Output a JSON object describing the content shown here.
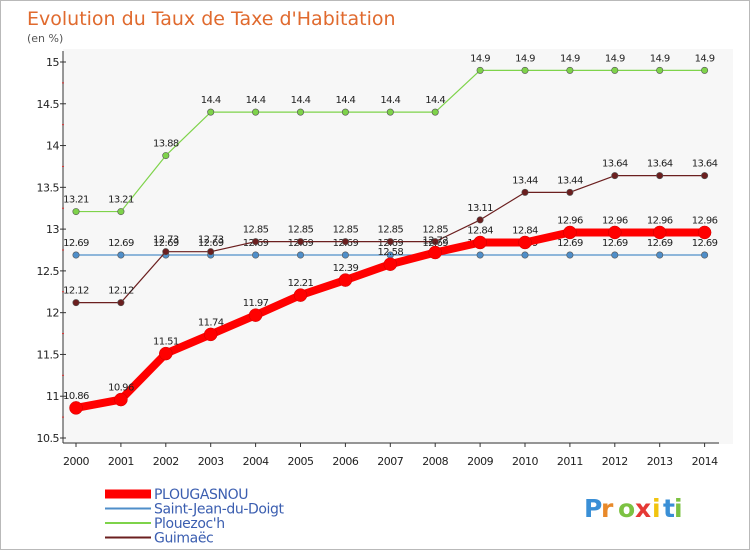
{
  "chart_data": {
    "type": "line",
    "title": "Evolution du Taux de Taxe d'Habitation",
    "subtitle": "(en %)",
    "x": [
      "2000",
      "2001",
      "2002",
      "2003",
      "2004",
      "2005",
      "2006",
      "2007",
      "2008",
      "2009",
      "2010",
      "2011",
      "2012",
      "2013",
      "2014"
    ],
    "ylim": [
      10.5,
      15
    ],
    "yticks": [
      "10.5",
      "11",
      "11.5",
      "12",
      "12.5",
      "13",
      "13.5",
      "14",
      "14.5",
      "15"
    ],
    "grid": false,
    "legend_position": "bottom-left",
    "series": [
      {
        "name": "PLOUGASNOU",
        "color": "#ff0000",
        "values": [
          10.86,
          10.96,
          11.51,
          11.74,
          11.97,
          12.21,
          12.39,
          12.58,
          12.72,
          12.84,
          12.84,
          12.96,
          12.96,
          12.96,
          12.96
        ],
        "labels": [
          "10.86",
          "10.96",
          "11.51",
          "11.74",
          "11.97",
          "12.21",
          "12.39",
          "12.58",
          "12.72",
          "12.84",
          "12.84",
          "12.96",
          "12.96",
          "12.96",
          "12.96"
        ]
      },
      {
        "name": "Saint-Jean-du-Doigt",
        "color": "#4f8ec9",
        "values": [
          12.69,
          12.69,
          12.69,
          12.69,
          12.69,
          12.69,
          12.69,
          12.69,
          12.69,
          12.69,
          12.69,
          12.69,
          12.69,
          12.69,
          12.69
        ],
        "labels": [
          "12.69",
          "12.69",
          "12.69",
          "12.69",
          "12.69",
          "12.69",
          "12.69",
          "12.69",
          "12.69",
          "12.69",
          "12.69",
          "12.69",
          "12.69",
          "12.69",
          "12.69"
        ]
      },
      {
        "name": "Plouezoc'h",
        "color": "#7ed34a",
        "values": [
          13.21,
          13.21,
          13.88,
          14.4,
          14.4,
          14.4,
          14.4,
          14.4,
          14.4,
          14.9,
          14.9,
          14.9,
          14.9,
          14.9,
          14.9
        ],
        "labels": [
          "13.21",
          "13.21",
          "13.88",
          "14.4",
          "14.4",
          "14.4",
          "14.4",
          "14.4",
          "14.4",
          "14.9",
          "14.9",
          "14.9",
          "14.9",
          "14.9",
          "14.9"
        ]
      },
      {
        "name": "Guimaëc",
        "color": "#6b1f1f",
        "values": [
          12.12,
          12.12,
          12.73,
          12.73,
          12.85,
          12.85,
          12.85,
          12.85,
          12.85,
          13.11,
          13.44,
          13.44,
          13.64,
          13.64,
          13.64
        ],
        "labels": [
          "12.12",
          "12.12",
          "12.73",
          "12.73",
          "12.85",
          "12.85",
          "12.85",
          "12.85",
          "12.85",
          "13.11",
          "13.44",
          "13.44",
          "13.64",
          "13.64",
          "13.64"
        ]
      }
    ]
  },
  "logo": {
    "letters": [
      "P",
      "r",
      "o",
      "x",
      "i",
      "t",
      "i"
    ],
    "colors": [
      "#3a8fd6",
      "#e8892a",
      "#7cc242",
      "#e53935",
      "#f1c40f",
      "#3a8fd6",
      "#7cc242"
    ]
  }
}
